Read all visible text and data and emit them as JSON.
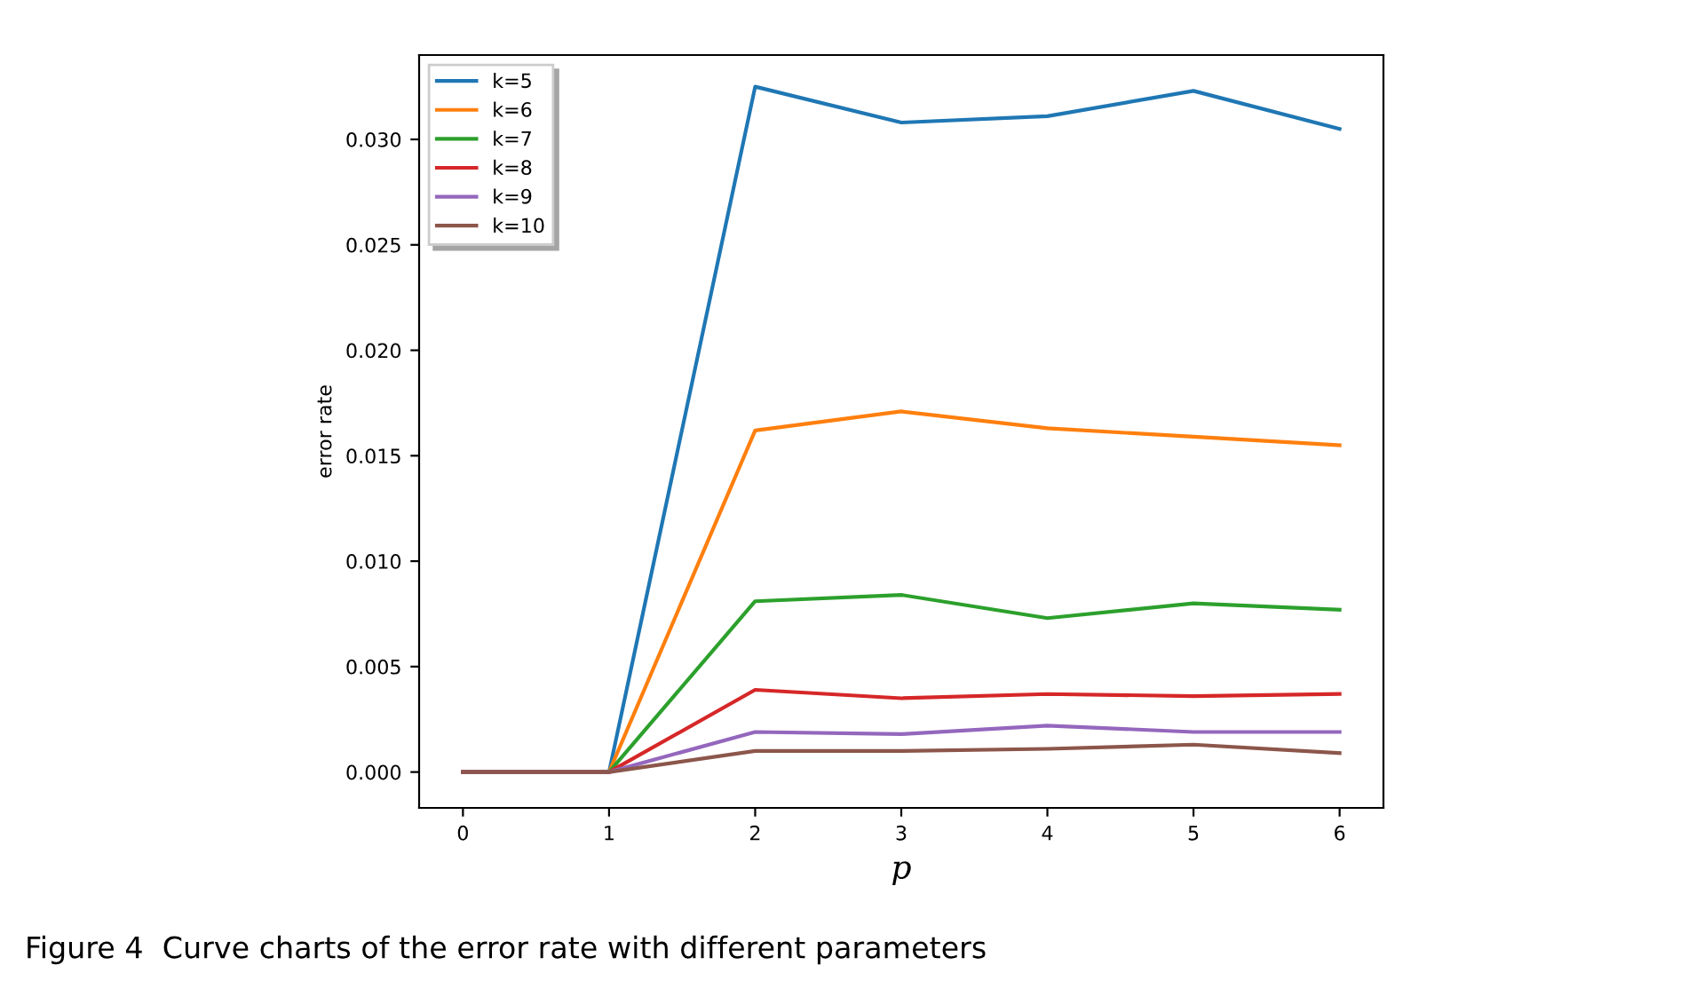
{
  "chart_data": {
    "type": "line",
    "xlabel": "p",
    "ylabel": "error rate",
    "x": [
      0,
      1,
      2,
      3,
      4,
      5,
      6
    ],
    "xlim": [
      -0.3,
      6.3
    ],
    "xticks": [
      0,
      1,
      2,
      3,
      4,
      5,
      6
    ],
    "ylim": [
      -0.0017,
      0.034
    ],
    "yticks": [
      {
        "value": 0,
        "label": "0.000"
      },
      {
        "value": 0.005,
        "label": "0.005"
      },
      {
        "value": 0.01,
        "label": "0.010"
      },
      {
        "value": 0.015,
        "label": "0.015"
      },
      {
        "value": 0.02,
        "label": "0.020"
      },
      {
        "value": 0.025,
        "label": "0.025"
      },
      {
        "value": 0.03,
        "label": "0.030"
      }
    ],
    "grid": false,
    "legend": "top left",
    "marker": "none",
    "line_style": "solid",
    "series": [
      {
        "name": "k=5",
        "color": "#1f77b4",
        "values": [
          0,
          0,
          0.0325,
          0.0308,
          0.0311,
          0.0323,
          0.0305
        ]
      },
      {
        "name": "k=6",
        "color": "#ff7f0e",
        "values": [
          0,
          0,
          0.0162,
          0.0171,
          0.0163,
          0.0159,
          0.0155
        ]
      },
      {
        "name": "k=7",
        "color": "#2ca02c",
        "values": [
          0,
          0,
          0.0081,
          0.0084,
          0.0073,
          0.008,
          0.0077
        ]
      },
      {
        "name": "k=8",
        "color": "#d62728",
        "values": [
          0,
          0,
          0.0039,
          0.0035,
          0.0037,
          0.0036,
          0.0037
        ]
      },
      {
        "name": "k=9",
        "color": "#9467bd",
        "values": [
          0,
          0,
          0.0019,
          0.0018,
          0.0022,
          0.0019,
          0.0019
        ]
      },
      {
        "name": "k=10",
        "color": "#8c564b",
        "values": [
          0,
          0,
          0.001,
          0.001,
          0.0011,
          0.0013,
          0.0009
        ]
      }
    ],
    "annotations": [
      "Figure 4  Curve charts of the error rate with different parameters"
    ]
  }
}
